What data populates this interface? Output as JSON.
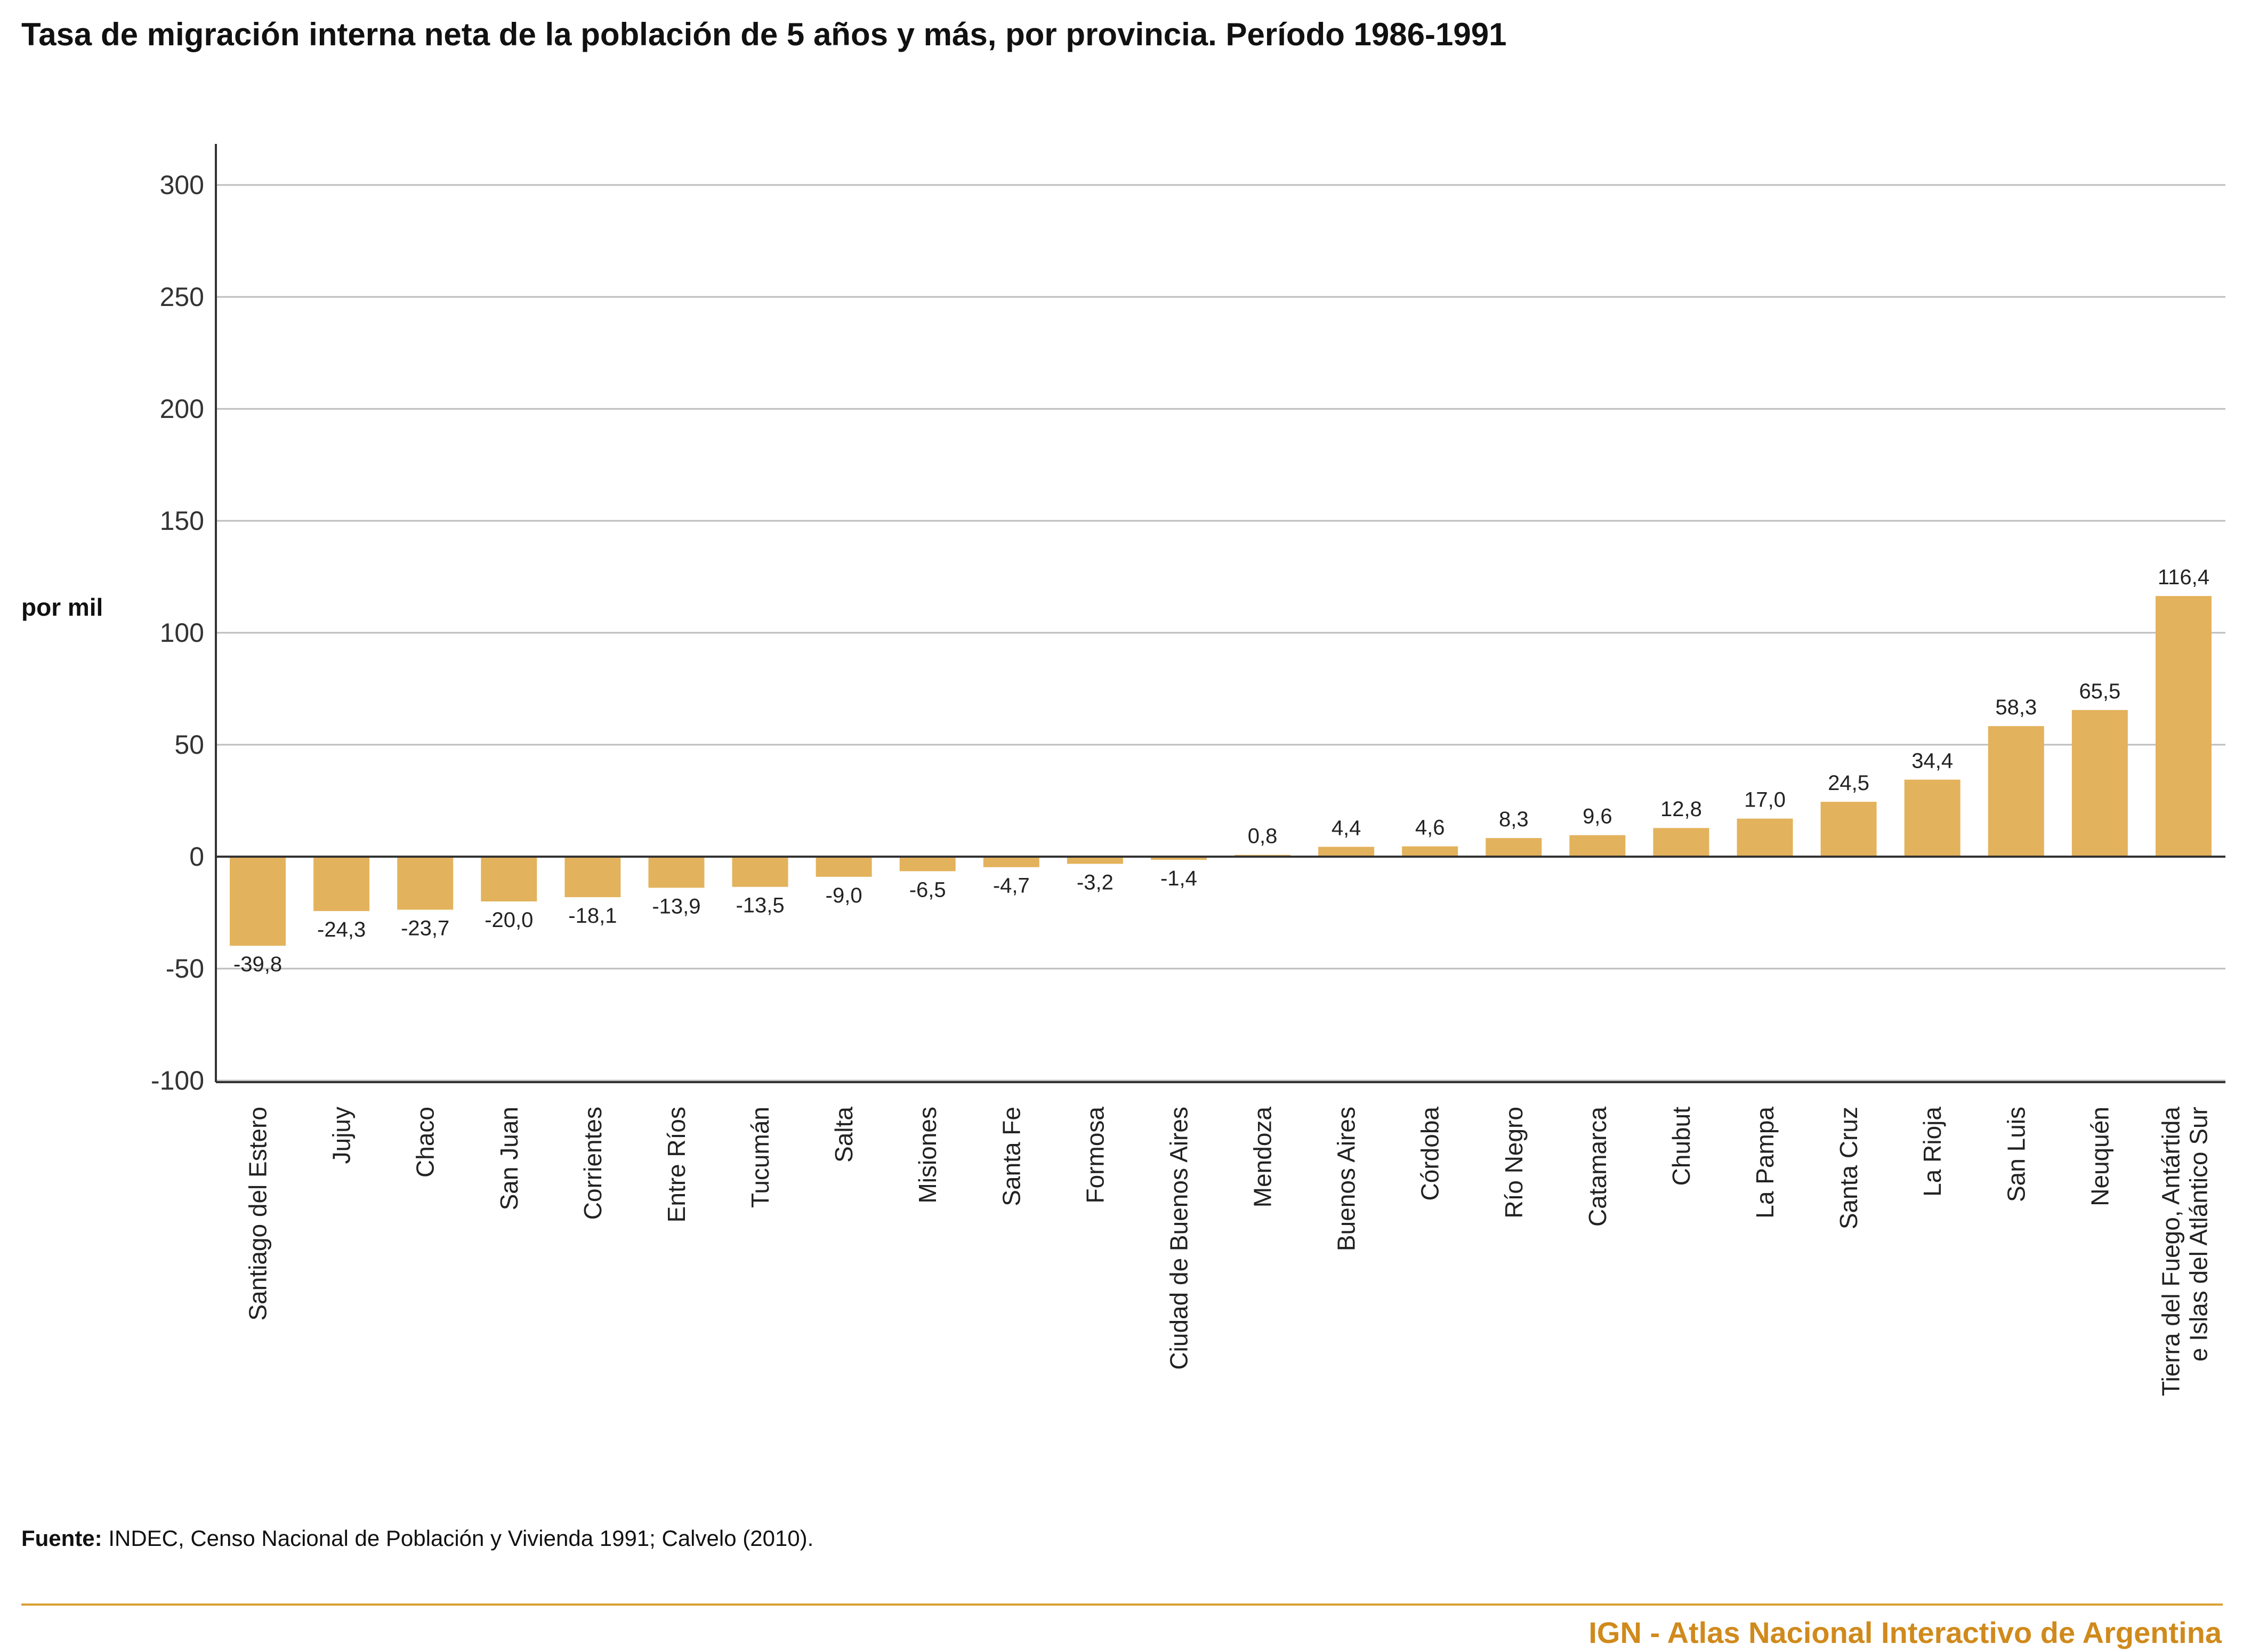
{
  "title": "Tasa de migración interna neta de la población de 5 años y más, por provincia. Período 1986-1991",
  "source_label": "Fuente:",
  "source_text": " INDEC, Censo Nacional de Población y Vivienda 1991; Calvelo (2010).",
  "footer": "IGN - Atlas Nacional Interactivo de Argentina",
  "colors": {
    "bar": "#e3b25c",
    "accent": "#d08a1c",
    "grid": "#bdbdbd",
    "axis": "#333333"
  },
  "chart_data": {
    "type": "bar",
    "ylabel": "por mil",
    "ylim": [
      -100,
      320
    ],
    "yticks": [
      300,
      250,
      200,
      150,
      100,
      50,
      0,
      -50,
      -100
    ],
    "grid": true,
    "categories": [
      "Santiago del Estero",
      "Jujuy",
      "Chaco",
      "San Juan",
      "Corrientes",
      "Entre Ríos",
      "Tucumán",
      "Salta",
      "Misiones",
      "Santa Fe",
      "Formosa",
      "Ciudad de Buenos Aires",
      "Mendoza",
      "Buenos Aires",
      "Córdoba",
      "Río Negro",
      "Catamarca",
      "Chubut",
      "La Pampa",
      "Santa Cruz",
      "La Rioja",
      "San Luis",
      "Neuquén",
      "Tierra del Fuego, Antártida e Islas del Atlántico Sur"
    ],
    "category_lines": [
      [
        "Santiago del Estero"
      ],
      [
        "Jujuy"
      ],
      [
        "Chaco"
      ],
      [
        "San Juan"
      ],
      [
        "Corrientes"
      ],
      [
        "Entre Ríos"
      ],
      [
        "Tucumán"
      ],
      [
        "Salta"
      ],
      [
        "Misiones"
      ],
      [
        "Santa Fe"
      ],
      [
        "Formosa"
      ],
      [
        "Ciudad de Buenos Aires"
      ],
      [
        "Mendoza"
      ],
      [
        "Buenos Aires"
      ],
      [
        "Córdoba"
      ],
      [
        "Río Negro"
      ],
      [
        "Catamarca"
      ],
      [
        "Chubut"
      ],
      [
        "La Pampa"
      ],
      [
        "Santa Cruz"
      ],
      [
        "La Rioja"
      ],
      [
        "San Luis"
      ],
      [
        "Neuquén"
      ],
      [
        "Tierra del Fuego, Antártida",
        "e Islas del Atlántico Sur"
      ]
    ],
    "values": [
      -39.8,
      -24.3,
      -23.7,
      -20.0,
      -18.1,
      -13.9,
      -13.5,
      -9.0,
      -6.5,
      -4.7,
      -3.2,
      -1.4,
      0.8,
      4.4,
      4.6,
      8.3,
      9.6,
      12.8,
      17.0,
      24.5,
      34.4,
      58.3,
      65.5,
      116.4
    ],
    "value_labels": [
      "-39,8",
      "-24,3",
      "-23,7",
      "-20,0",
      "-18,1",
      "-13,9",
      "-13,5",
      "-9,0",
      "-6,5",
      "-4,7",
      "-3,2",
      "-1,4",
      "0,8",
      "4,4",
      "4,6",
      "8,3",
      "9,6",
      "12,8",
      "17,0",
      "24,5",
      "34,4",
      "58,3",
      "65,5",
      "116,4"
    ]
  }
}
